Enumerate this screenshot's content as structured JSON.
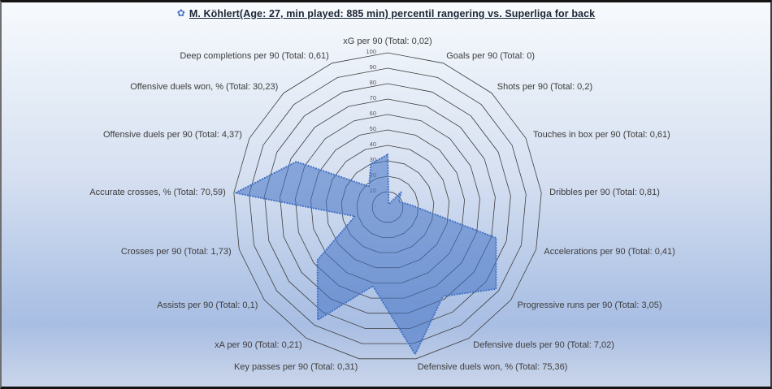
{
  "title": {
    "icon": "✿",
    "text": "M. Köhlert(Age: 27, min played: 885 min) percentil rangering vs. Superliga for back"
  },
  "chart_data": {
    "type": "radar",
    "title": "M. Köhlert(Age: 27, min played: 885 min) percentil rangering vs. Superliga for back",
    "axis_range": [
      0,
      100
    ],
    "num_rings": 10,
    "grid": "concentric 17-sided polygons, no radial spokes",
    "legend_position": "none",
    "categories": [
      "xG per 90 (Total: 0,02)",
      "Goals per 90 (Total: 0)",
      "Shots per 90 (Total: 0,2)",
      "Touches in box per 90 (Total: 0,61)",
      "Dribbles per 90 (Total: 0,81)",
      "Accelerations per 90 (Total: 0,41)",
      "Progressive runs per 90 (Total: 3,05)",
      "Defensive duels per 90 (Total: 7,02)",
      "Defensive duels won, % (Total: 75,36)",
      "Key passes per 90 (Total: 0,31)",
      "xA per 90 (Total: 0,21)",
      "Assists per 90 (Total: 0,1)",
      "Crosses per 90 (Total: 1,73)",
      "Accurate crosses, % (Total: 70,59)",
      "Offensive duels per 90 (Total: 4,37)",
      "Offensive duels won, % (Total: 30,23)",
      "Deep completions per 90 (Total: 0,61)"
    ],
    "values": [
      34,
      2,
      13,
      8,
      15,
      73,
      88,
      68,
      97,
      52,
      86,
      57,
      22,
      99,
      66,
      18,
      30
    ],
    "tick_labels": [
      {
        "label": "100",
        "value": 100
      },
      {
        "label": "90",
        "value": 90
      },
      {
        "label": "80",
        "value": 80
      },
      {
        "label": "70",
        "value": 70
      },
      {
        "label": "60",
        "value": 60
      },
      {
        "label": "50",
        "value": 50
      },
      {
        "label": "40",
        "value": 40
      },
      {
        "label": "30",
        "value": 30
      },
      {
        "label": "20",
        "value": 20
      },
      {
        "label": "10",
        "value": 10
      },
      {
        "label": "-",
        "value": 0
      }
    ],
    "colors": {
      "series_fill": "#4472C4",
      "series_fill_opacity": 0.55,
      "series_border": "#4472C4",
      "grid_line": "#3F3F3F",
      "axis_label": "#3D3D3D",
      "tick_label": "#595959",
      "title_text": "#1D2635",
      "title_icon": "#4472C4",
      "background_gradient": [
        "#F7FAFD",
        "#D6E0F1",
        "#A9BEE3",
        "#CAD5EA"
      ]
    }
  }
}
